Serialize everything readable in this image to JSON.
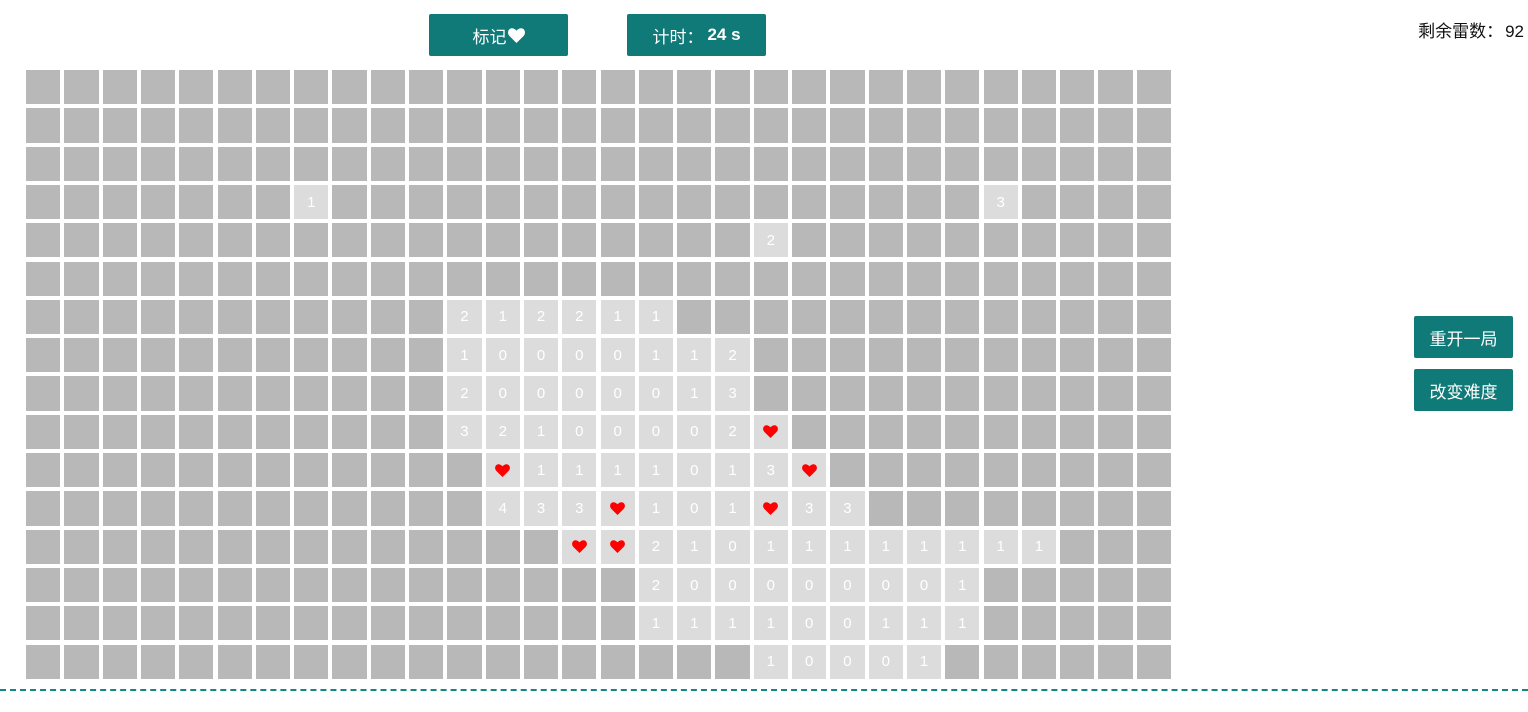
{
  "toolbar": {
    "mark_label": "标记",
    "mark_icon": "heart-icon",
    "timer_label": "计时：",
    "timer_value": "24 s"
  },
  "status": {
    "remaining_label": "剩余雷数：",
    "remaining_value": "92"
  },
  "side_buttons": {
    "restart_label": "重开一局",
    "difficulty_label": "改变难度"
  },
  "colors": {
    "button_bg": "#0f7a78",
    "cell_closed": "#b8b8b8",
    "cell_open": "#dcdcdc",
    "flag": "#ff0000",
    "divider": "#128884"
  },
  "board": {
    "rows": 16,
    "cols": 30,
    "legend": "# = unopened, F = flagged (heart), digit = opened cell showing adjacent mine count",
    "grid": [
      "##############################",
      "##############################",
      "##############################",
      "#######1#################3####",
      "###################2##########",
      "##############################",
      "###########212211#############",
      "###########10000112###########",
      "###########20000013###########",
      "###########32100002F##########",
      "############F1111013F#########",
      "############433F101F33########",
      "##############FF21011111111###",
      "################200000001#####",
      "################111100111#####",
      "###################10001######"
    ]
  }
}
